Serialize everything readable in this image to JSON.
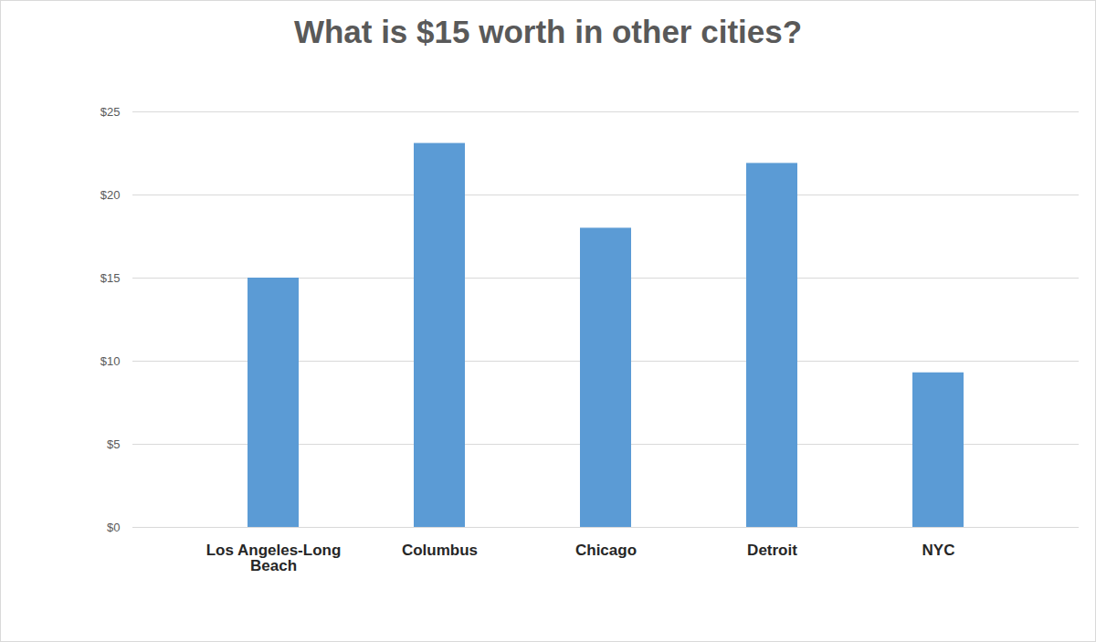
{
  "chart_data": {
    "type": "bar",
    "title": "What is $15 worth in other cities?",
    "categories": [
      "Los Angeles-Long Beach",
      "Columbus",
      "Chicago",
      "Detroit",
      "NYC"
    ],
    "values": [
      15,
      23.1,
      18,
      21.9,
      9.3
    ],
    "color": "#5b9bd5",
    "ylim": [
      0,
      25
    ],
    "yticks": [
      {
        "value": 0,
        "label": "$0"
      },
      {
        "value": 5,
        "label": "$5"
      },
      {
        "value": 10,
        "label": "$10"
      },
      {
        "value": 15,
        "label": "$15"
      },
      {
        "value": 20,
        "label": "$20"
      },
      {
        "value": 25,
        "label": "$25"
      }
    ],
    "grid": true
  }
}
